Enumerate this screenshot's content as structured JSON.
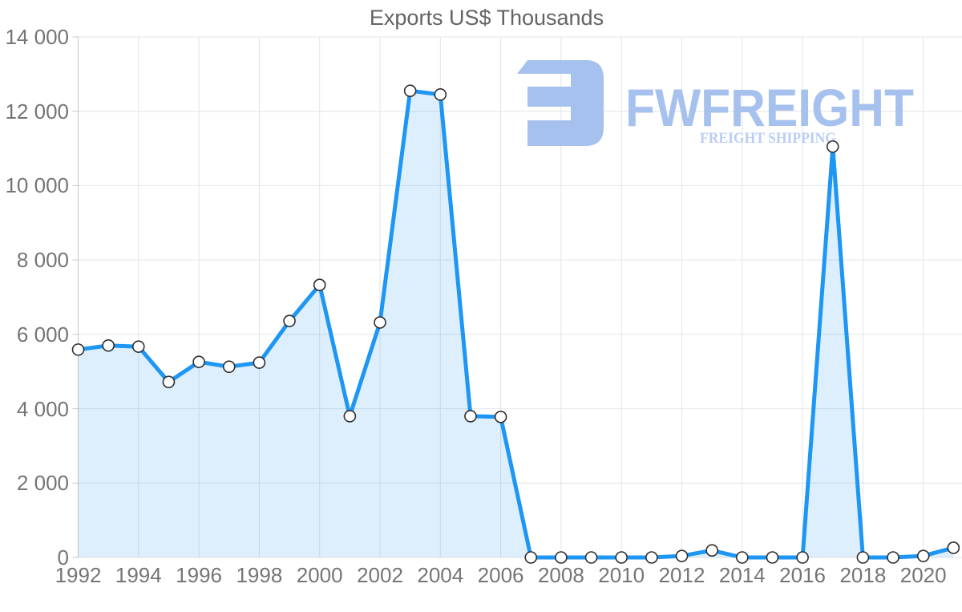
{
  "page": {
    "title": "Exports US$ Thousands"
  },
  "watermark": {
    "brand": "FWFREIGHT",
    "tagline": "FREIGHT SHIPPING",
    "brand_color": "#a6c1ee",
    "tagline_color": "#b9cdf4"
  },
  "chart_data": {
    "type": "area",
    "title": "Exports US$ Thousands",
    "series_name": "Exports US$ Thousands",
    "x": [
      1992,
      1993,
      1994,
      1995,
      1996,
      1997,
      1998,
      1999,
      2000,
      2001,
      2002,
      2003,
      2004,
      2005,
      2006,
      2007,
      2008,
      2009,
      2010,
      2011,
      2012,
      2013,
      2014,
      2015,
      2016,
      2017,
      2018,
      2019,
      2020,
      2021
    ],
    "values": [
      5590,
      5700,
      5670,
      4720,
      5260,
      5130,
      5240,
      6360,
      7330,
      3800,
      6320,
      12550,
      12450,
      3800,
      3780,
      0,
      0,
      0,
      0,
      0,
      40,
      190,
      0,
      0,
      0,
      11050,
      0,
      0,
      40,
      260
    ],
    "xlabel": "",
    "ylabel": "",
    "xlim": [
      1992,
      2021
    ],
    "ylim": [
      0,
      14000
    ],
    "grid": true,
    "legend": "none",
    "markers": true,
    "y_tick_values": [
      0,
      2000,
      4000,
      6000,
      8000,
      10000,
      12000,
      14000
    ],
    "y_tick_labels": [
      "0",
      "2 000",
      "4 000",
      "6 000",
      "8 000",
      "10 000",
      "12 000",
      "14 000"
    ],
    "x_tick_values": [
      1992,
      1994,
      1996,
      1998,
      2000,
      2002,
      2004,
      2006,
      2008,
      2010,
      2012,
      2014,
      2016,
      2018,
      2020
    ],
    "x_tick_labels": [
      "1992",
      "1994",
      "1996",
      "1998",
      "2000",
      "2002",
      "2004",
      "2006",
      "2008",
      "2010",
      "2012",
      "2014",
      "2016",
      "2018",
      "2020"
    ],
    "colors": {
      "line": "#1e96f3",
      "area_fill": "rgba(30,150,243,0.15)",
      "marker_fill": "#ffffff",
      "marker_stroke": "#2e2e2e",
      "grid": "#e4e4e4",
      "axis": "#c6c6c6",
      "tick_label": "#757575",
      "title": "#646464"
    }
  }
}
